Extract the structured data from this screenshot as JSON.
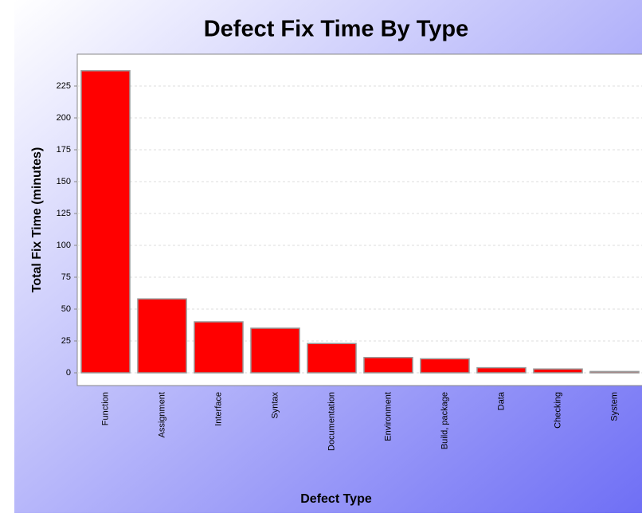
{
  "chart_data": {
    "type": "bar",
    "title": "Defect Fix Time By Type",
    "x_label": "Defect Type",
    "y_label": "Total Fix Time (minutes)",
    "categories": [
      "Function",
      "Assignment",
      "Interface",
      "Syntax",
      "Documentation",
      "Environment",
      "Build, package",
      "Data",
      "Checking",
      "System"
    ],
    "values": [
      237,
      58,
      40,
      35,
      23,
      12,
      11,
      4,
      3,
      1
    ],
    "color": "#ff0000",
    "ylim": [
      -10,
      250
    ],
    "yticks": [
      0,
      25,
      50,
      75,
      100,
      125,
      150,
      175,
      200,
      225
    ],
    "grid": true
  }
}
